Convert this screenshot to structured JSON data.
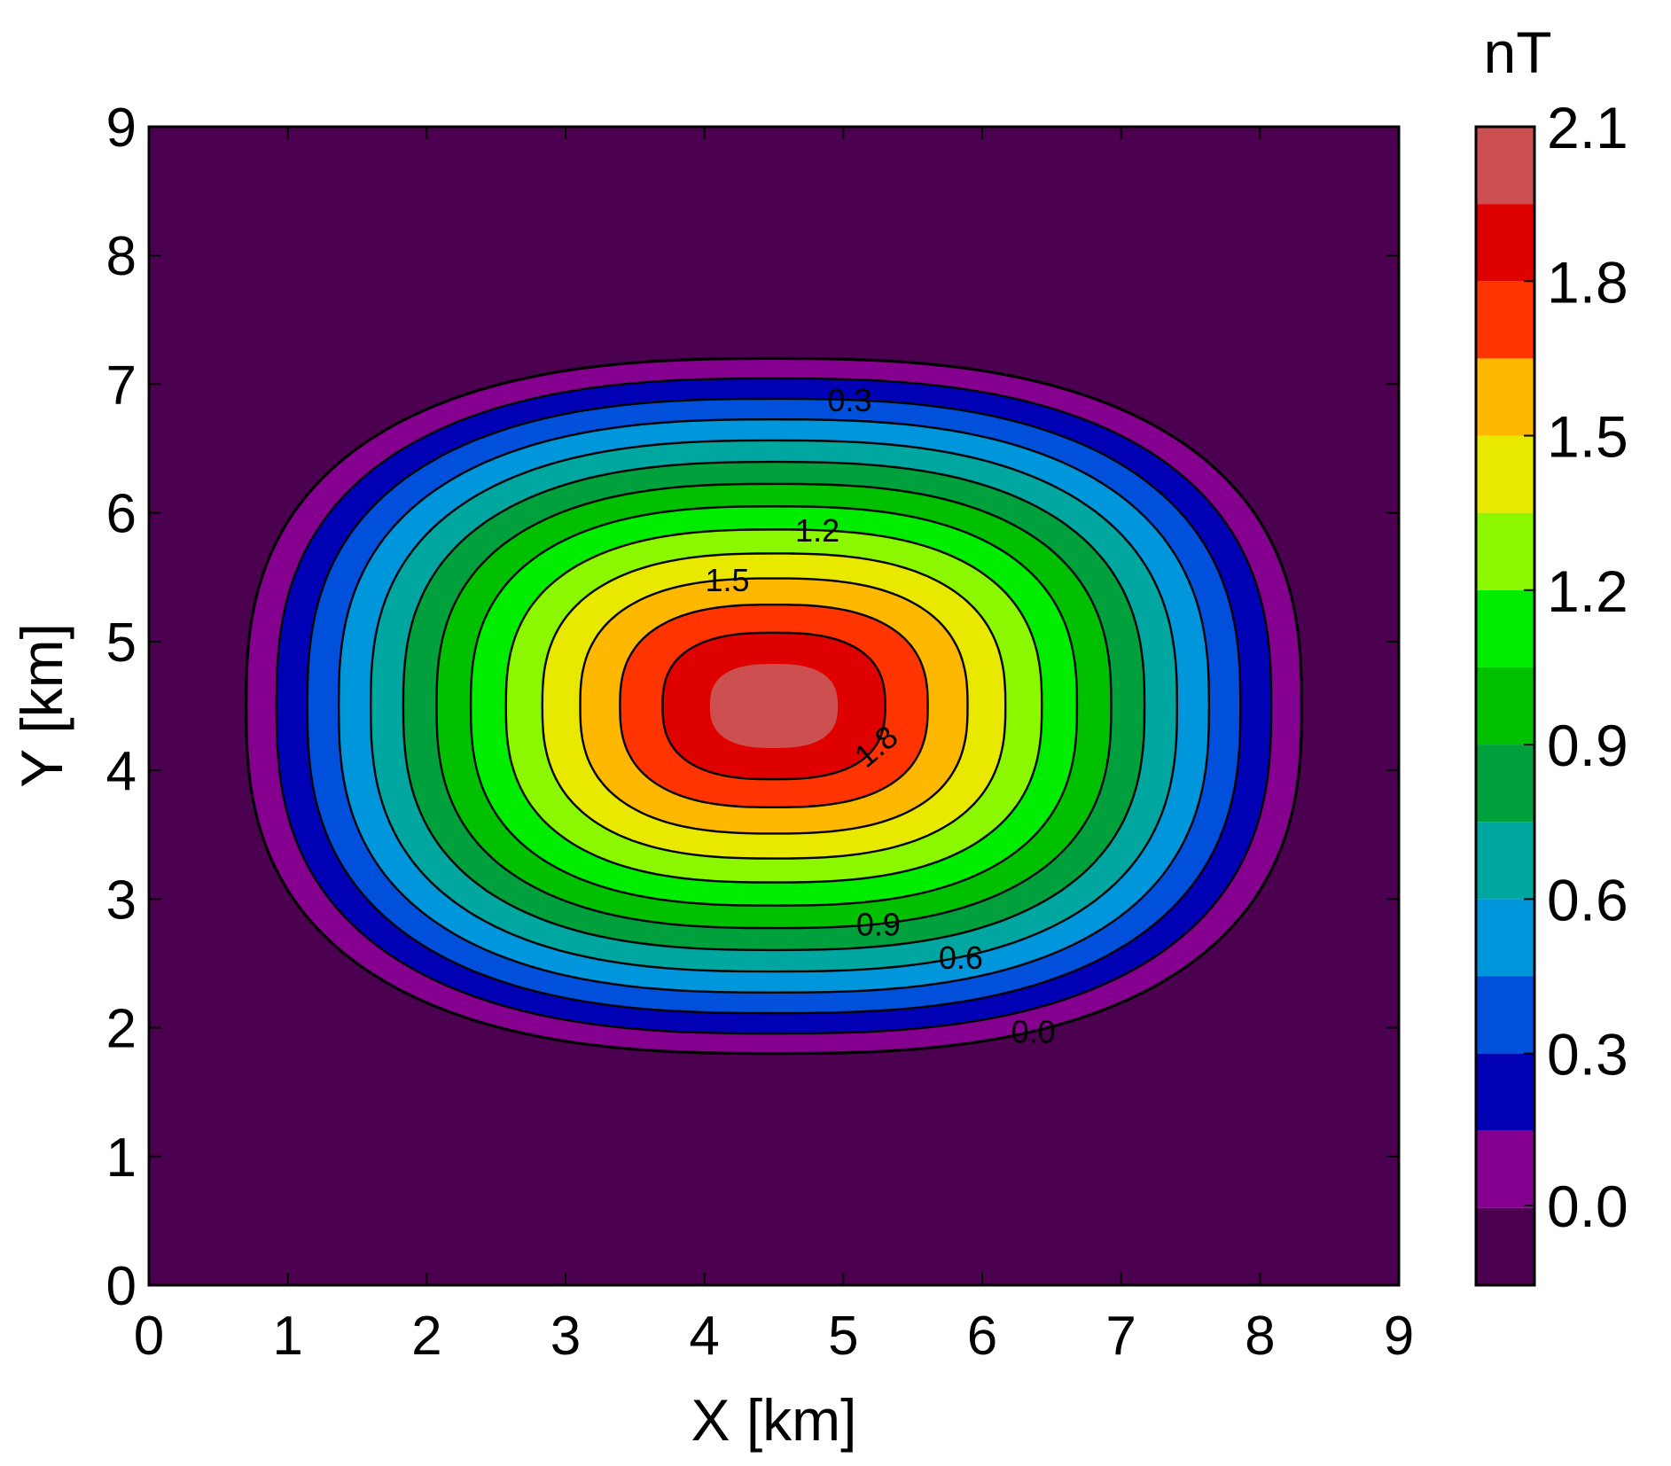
{
  "chart_data": {
    "type": "heatmap",
    "subtype": "filled-contour",
    "xlabel": "X [km]",
    "ylabel": "Y [km]",
    "xlim": [
      0,
      9
    ],
    "ylim": [
      0,
      9
    ],
    "x_ticks": [
      "0",
      "1",
      "2",
      "3",
      "4",
      "5",
      "6",
      "7",
      "8",
      "9"
    ],
    "y_ticks": [
      "0",
      "1",
      "2",
      "3",
      "4",
      "5",
      "6",
      "7",
      "8",
      "9"
    ],
    "grid": false,
    "field": {
      "center": [
        4.5,
        4.5
      ],
      "peak_value": 2.1,
      "outer_contour_half_extent": [
        3.8,
        2.7
      ],
      "shape": "elongated-ellipse (x-axis)"
    },
    "colorbar": {
      "unit": "nT",
      "tick_labels": [
        "2.1",
        "1.8",
        "1.5",
        "1.2",
        "0.9",
        "0.6",
        "0.3",
        "0.0"
      ],
      "tick_values": [
        2.1,
        1.8,
        1.5,
        1.2,
        0.9,
        0.6,
        0.3,
        0.0
      ],
      "levels": [
        -0.15,
        0.0,
        0.15,
        0.3,
        0.45,
        0.6,
        0.75,
        0.9,
        1.05,
        1.2,
        1.35,
        1.5,
        1.65,
        1.8,
        1.95,
        2.1
      ],
      "colors": [
        "#4b0050",
        "#85008f",
        "#0000b5",
        "#0050dc",
        "#0096dc",
        "#00a6a0",
        "#00a03c",
        "#00c000",
        "#00ed00",
        "#8cf800",
        "#e9e900",
        "#ffb800",
        "#ff3400",
        "#df0000",
        "#cc5050"
      ]
    },
    "contour_lines": [
      {
        "value": 0.0,
        "label": "0.0",
        "labeled": true
      },
      {
        "value": 0.3,
        "label": "0.3",
        "labeled": true
      },
      {
        "value": 0.6,
        "label": "0.6",
        "labeled": true
      },
      {
        "value": 0.9,
        "label": "0.9",
        "labeled": true
      },
      {
        "value": 1.2,
        "label": "1.2",
        "labeled": true
      },
      {
        "value": 1.5,
        "label": "1.5",
        "labeled": true
      },
      {
        "value": 1.8,
        "label": "1.8",
        "labeled": true
      }
    ],
    "contour_line_levels": [
      0.0,
      0.15,
      0.3,
      0.45,
      0.6,
      0.75,
      0.9,
      1.05,
      1.2,
      1.35,
      1.5,
      1.65,
      1.8
    ]
  }
}
